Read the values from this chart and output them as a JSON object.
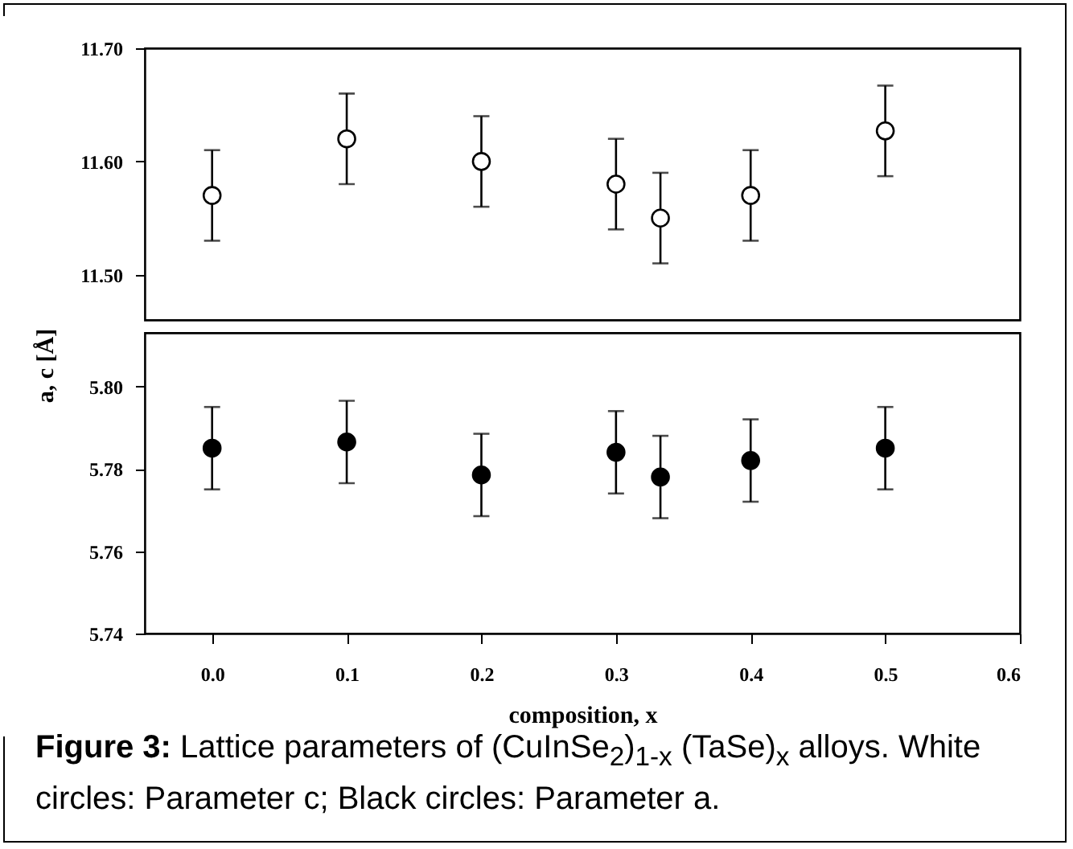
{
  "chart_data": [
    {
      "type": "scatter",
      "ylabel": "a, c [Å]",
      "x": [
        0,
        0.1,
        0.2,
        0.3,
        0.333,
        0.4,
        0.5
      ],
      "xlim": [
        -0.05,
        0.6
      ],
      "ylim": [
        11.46,
        11.7
      ],
      "yticks": [
        {
          "value": 11.5,
          "label": "11.50"
        },
        {
          "value": 11.6,
          "label": "11.60"
        },
        {
          "value": 11.7,
          "label": "11.70"
        }
      ],
      "tick_labels": "y",
      "marker": "circle",
      "series": [
        {
          "color": "#ffffff",
          "values": [
            11.57,
            11.62,
            11.6,
            11.58,
            11.55,
            11.57,
            11.627
          ],
          "errors": [
            0.04,
            0.04,
            0.04,
            0.04,
            0.04,
            0.04,
            0.04
          ]
        }
      ]
    },
    {
      "type": "scatter",
      "xlabel": "composition, x",
      "x": [
        0,
        0.1,
        0.2,
        0.3,
        0.333,
        0.4,
        0.5
      ],
      "xlim": [
        -0.05,
        0.6
      ],
      "xticks": [
        {
          "value": 0,
          "label": "0.0"
        },
        {
          "value": 0.1,
          "label": "0.1"
        },
        {
          "value": 0.2,
          "label": "0.2"
        },
        {
          "value": 0.3,
          "label": "0.3"
        },
        {
          "value": 0.4,
          "label": "0.4"
        },
        {
          "value": 0.5,
          "label": "0.5"
        },
        {
          "value": 0.6,
          "label": "0.6"
        }
      ],
      "ylim": [
        5.74,
        5.813
      ],
      "yticks": [
        {
          "value": 5.74,
          "label": "5.74"
        },
        {
          "value": 5.76,
          "label": "5.76"
        },
        {
          "value": 5.78,
          "label": "5.78"
        },
        {
          "value": 5.8,
          "label": "5.80"
        }
      ],
      "marker": "circle",
      "series": [
        {
          "color": "#000000",
          "values": [
            5.785,
            5.7865,
            5.7785,
            5.784,
            5.778,
            5.782,
            5.785
          ],
          "errors": [
            0.01,
            0.01,
            0.01,
            0.01,
            0.01,
            0.01,
            0.01
          ]
        }
      ],
      "annotations": [
        "Figure 3:",
        "Lattice parameters of (CuInSe$_{2}$)$_{1-x}$ (TaSe)$_{x}$ alloys. White circles: Parameter c; Black circles: Parameter a."
      ]
    }
  ]
}
